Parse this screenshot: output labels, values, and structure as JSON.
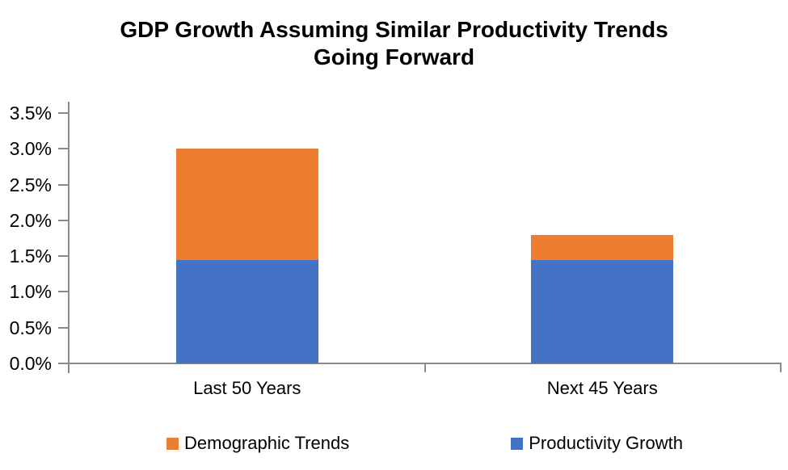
{
  "title": {
    "line1": "GDP Growth Assuming Similar Productivity Trends",
    "line2": "Going Forward"
  },
  "colors": {
    "demographic_orange": "#ED7D31",
    "productivity_blue": "#4472C4",
    "axis_gray": "#8A8A8A",
    "text": "#000000",
    "background": "#FFFFFF"
  },
  "chart_data": {
    "type": "bar",
    "stacked": true,
    "title": "GDP Growth Assuming Similar Productivity Trends Going Forward",
    "categories": [
      "Last 50 Years",
      "Next 45 Years"
    ],
    "series": [
      {
        "name": "Productivity Growth",
        "color": "#4472C4",
        "values": [
          1.45,
          1.45
        ],
        "unit": "%"
      },
      {
        "name": "Demographic Trends",
        "color": "#ED7D31",
        "values": [
          1.55,
          0.35
        ],
        "unit": "%"
      }
    ],
    "stack_totals": [
      3.0,
      1.8
    ],
    "y_axis": {
      "min": 0,
      "max": 3.5,
      "step": 0.5,
      "tick_labels": [
        "0.0%",
        "0.5%",
        "1.0%",
        "1.5%",
        "2.0%",
        "2.5%",
        "3.0%",
        "3.5%"
      ],
      "format": "percent"
    },
    "x_axis": {
      "labels": [
        "Last 50 Years",
        "Next 45 Years"
      ]
    },
    "legend": {
      "position": "bottom",
      "items": [
        {
          "label": "Demographic Trends",
          "color": "#ED7D31"
        },
        {
          "label": "Productivity Growth",
          "color": "#4472C4"
        }
      ]
    },
    "grid": false,
    "plot_background": "#FFFFFF"
  }
}
